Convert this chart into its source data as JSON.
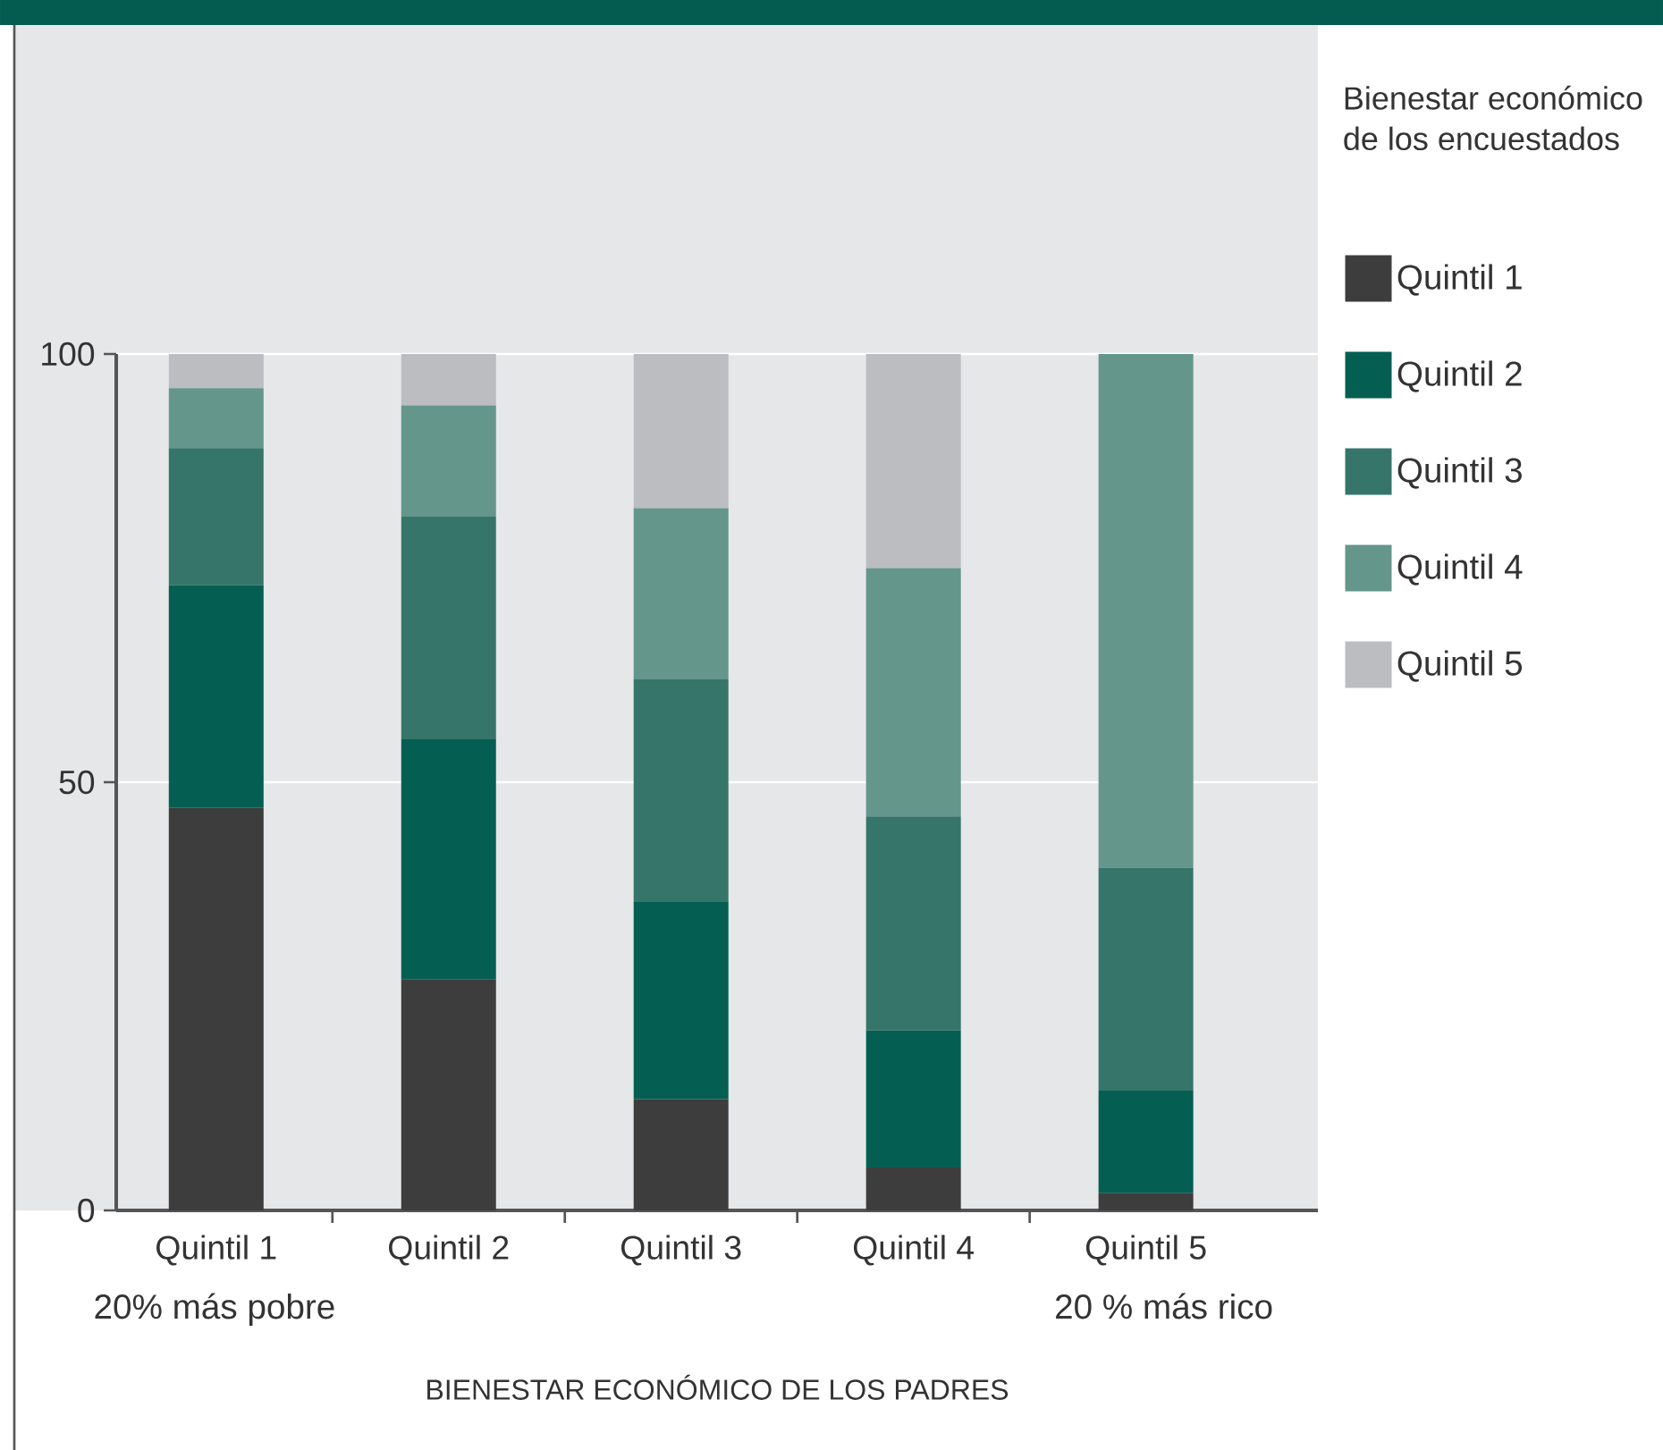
{
  "chart_data": {
    "type": "bar",
    "stacked": true,
    "categories": [
      "Quintil 1",
      "Quintil 2",
      "Quintil 3",
      "Quintil 4",
      "Quintil 5"
    ],
    "series": [
      {
        "name": "Quintil 1",
        "color": "#3d3d3d",
        "values": [
          47,
          27,
          13,
          5,
          2
        ]
      },
      {
        "name": "Quintil 2",
        "color": "#045f52",
        "values": [
          26,
          28,
          23,
          16,
          12
        ]
      },
      {
        "name": "Quintil 3",
        "color": "#36756a",
        "values": [
          16,
          26,
          26,
          25,
          26
        ]
      },
      {
        "name": "Quintil 4",
        "color": "#64968c",
        "values": [
          7,
          13,
          20,
          29,
          60
        ]
      },
      {
        "name": "Quintil 5",
        "color": "#bbbdc0",
        "values": [
          4,
          6,
          18,
          25,
          0
        ]
      }
    ],
    "ylim": [
      0,
      100
    ],
    "yticks": [
      0,
      50,
      100
    ],
    "grid": "y",
    "legend": "right",
    "legend_title": "Bienestar económico de los encuestados",
    "xlabel": "BIENESTAR ECONÓMICO DE LOS PADRES",
    "annotations": [
      "20% más pobre",
      "20 % más rico"
    ]
  }
}
